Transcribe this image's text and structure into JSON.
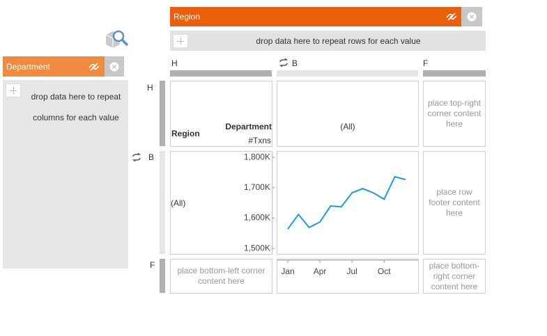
{
  "region_panel": {
    "label": "Region"
  },
  "row_drop": {
    "text": "drop data here to repeat rows for each value"
  },
  "department_panel": {
    "label": "Department"
  },
  "column_drop": {
    "lines": [
      "drop data here to repeat",
      "columns for each value"
    ]
  },
  "column_headers": [
    "H",
    "B",
    "F"
  ],
  "row_headers": [
    "H",
    "B",
    "F"
  ],
  "cells": {
    "header_row_label": "Region",
    "header_column_label": "Department",
    "measure": "#Txns",
    "top_all": "(All)",
    "top_right": "place top-right corner content here",
    "left_all": "(All)",
    "row_footer": "place row footer content here",
    "bottom_left": "place bottom-left corner content here",
    "bottom_right": "place bottom-right corner content here"
  },
  "chart_data": {
    "type": "line",
    "categories": [
      "Jan",
      null,
      null,
      "Apr",
      null,
      null,
      "Jul",
      null,
      null,
      "Oct",
      null,
      null
    ],
    "series": [
      {
        "color": "#1a9be0",
        "values": [
          1564000,
          1612000,
          1569000,
          1587000,
          1640000,
          1637000,
          1683000,
          1697000,
          1683000,
          1662000,
          1736000,
          1727000
        ]
      }
    ],
    "ylim": [
      1482000,
      1821000
    ],
    "yticks": [
      {
        "value": 1500000,
        "label": "1,500K"
      },
      {
        "value": 1600000,
        "label": "1,600K"
      },
      {
        "value": 1700000,
        "label": "1,700K"
      },
      {
        "value": 1800000,
        "label": "1,800K"
      }
    ]
  }
}
